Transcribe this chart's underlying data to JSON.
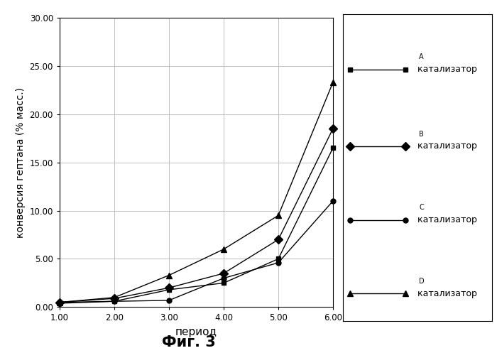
{
  "x": [
    1.0,
    2.0,
    3.0,
    4.0,
    5.0,
    6.0
  ],
  "catalyst_A": [
    0.5,
    0.6,
    1.8,
    2.5,
    5.0,
    16.5
  ],
  "catalyst_B": [
    0.5,
    0.9,
    2.0,
    3.5,
    7.0,
    18.5
  ],
  "catalyst_C": [
    0.4,
    0.6,
    0.7,
    3.0,
    4.6,
    11.0
  ],
  "catalyst_D": [
    0.5,
    1.0,
    3.3,
    6.0,
    9.5,
    23.3
  ],
  "xlabel": "период",
  "ylabel": "конверсия гептана (% масс.)",
  "legend_A": "катализатор A",
  "legend_B": "катализатор B",
  "legend_C": "катализатор C",
  "legend_D": "катализатор D",
  "figure_label": "Фиг. 3",
  "ylim": [
    0.0,
    30.0
  ],
  "xlim": [
    1.0,
    6.0
  ],
  "yticks": [
    0.0,
    5.0,
    10.0,
    15.0,
    20.0,
    25.0,
    30.0
  ],
  "xticks": [
    1.0,
    2.0,
    3.0,
    4.0,
    5.0,
    6.0
  ],
  "color": "#000000",
  "bg_color": "#ffffff",
  "grid_color": "#c0c0c0"
}
